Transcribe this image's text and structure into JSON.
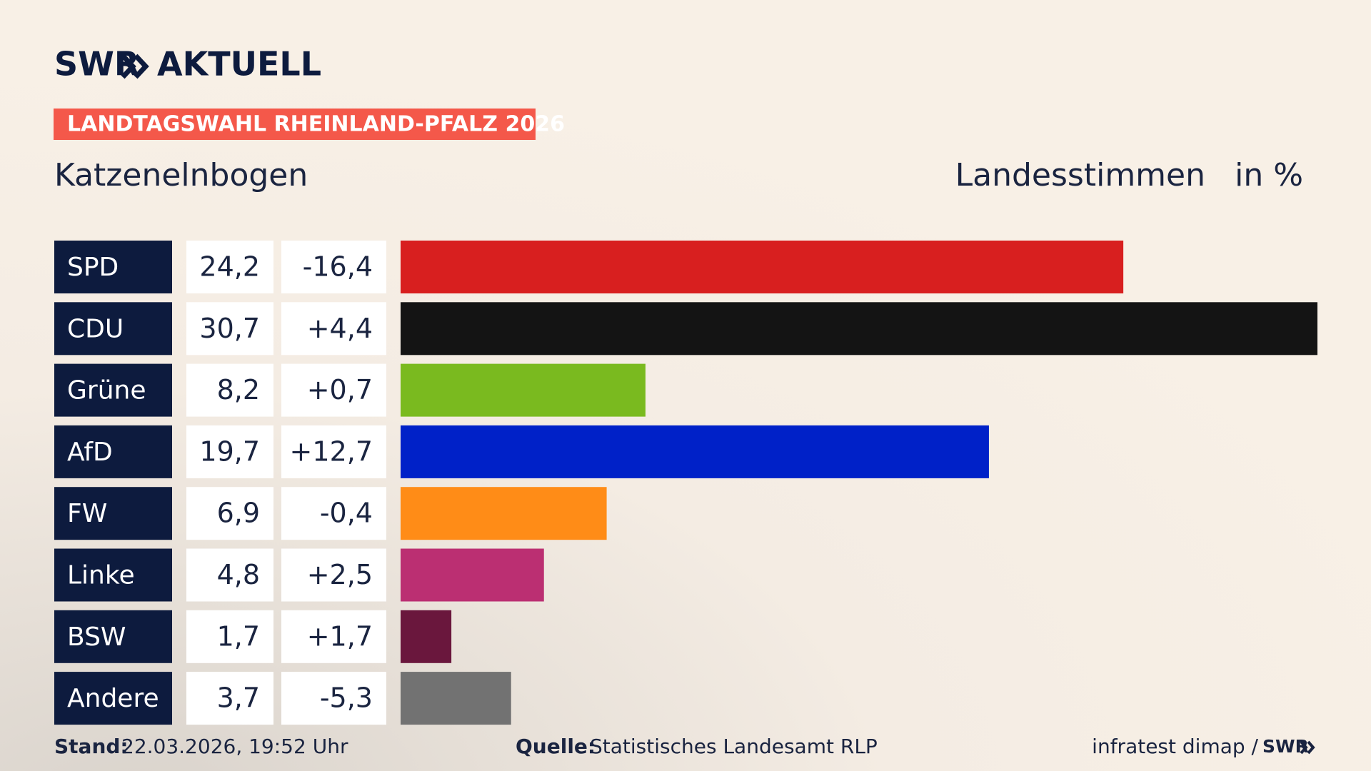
{
  "logo": {
    "brand": "SWR",
    "name": "AKTUELL"
  },
  "chart_data": {
    "type": "bar",
    "badge": "LANDTAGSWAHL RHEINLAND-PFALZ 2026",
    "title": "Katzenelnbogen",
    "subtitle": "Landesstimmen",
    "unit": "in %",
    "categories": [
      "SPD",
      "CDU",
      "Grüne",
      "AfD",
      "FW",
      "Linke",
      "BSW",
      "Andere"
    ],
    "values": [
      24.2,
      30.7,
      8.2,
      19.7,
      6.9,
      4.8,
      1.7,
      3.7
    ],
    "value_labels": [
      "24,2",
      "30,7",
      "8,2",
      "19,7",
      "6,9",
      "4,8",
      "1,7",
      "3,7"
    ],
    "changes": [
      "-16,4",
      "+4,4",
      "+0,7",
      "+12,7",
      "-0,4",
      "+2,5",
      "+1,7",
      "-5,3"
    ],
    "colors": [
      "#d81f1f",
      "#141414",
      "#7aba1f",
      "#0021c8",
      "#ff8c17",
      "#bb2f72",
      "#6a173d",
      "#727272"
    ]
  },
  "footer": {
    "stand_label": "Stand:",
    "stand": "22.03.2026, 19:52 Uhr",
    "source_label": "Quelle:",
    "source": "Statistisches Landesamt RLP",
    "credit": "infratest dimap /",
    "credit_brand": "SWR"
  }
}
